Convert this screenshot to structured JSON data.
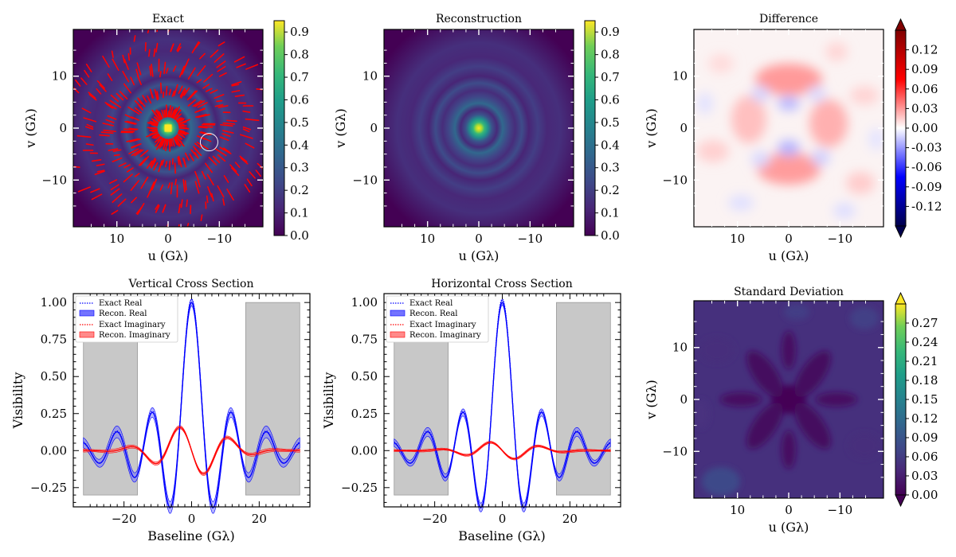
{
  "figure_title": "",
  "chart_data": [
    {
      "type": "heatmap",
      "id": "exact",
      "title": "Exact",
      "xlabel": "u (Gλ)",
      "ylabel": "v (Gλ)",
      "xlim": [
        18.5,
        -18.5
      ],
      "ylim": [
        -19,
        19
      ],
      "xticks": [
        10,
        0,
        -10
      ],
      "yticks": [
        10,
        0,
        -10
      ],
      "xtick_labels": [
        "10",
        "0",
        "−10"
      ],
      "ytick_labels": [
        "10",
        "0",
        "−10"
      ],
      "colormap": "viridis",
      "colorbar": {
        "range": [
          0.0,
          0.95
        ],
        "ticks": [
          0.0,
          0.1,
          0.2,
          0.3,
          0.4,
          0.5,
          0.6,
          0.7,
          0.8,
          0.9
        ],
        "tick_labels": [
          "0.0",
          "0.1",
          "0.2",
          "0.3",
          "0.4",
          "0.5",
          "0.6",
          "0.7",
          "0.8",
          "0.9"
        ]
      },
      "overlay": "red uv-coverage tracks",
      "ring_annotation_center": [
        -8,
        -2.7
      ]
    },
    {
      "type": "heatmap",
      "id": "reconstruction",
      "title": "Reconstruction",
      "xlabel": "u (Gλ)",
      "ylabel": "v (Gλ)",
      "xlim": [
        18.5,
        -18.5
      ],
      "ylim": [
        -19,
        19
      ],
      "xticks": [
        10,
        0,
        -10
      ],
      "yticks": [
        10,
        0,
        -10
      ],
      "xtick_labels": [
        "10",
        "0",
        "−10"
      ],
      "ytick_labels": [
        "10",
        "0",
        "−10"
      ],
      "colormap": "viridis",
      "colorbar": {
        "range": [
          0.0,
          0.95
        ],
        "ticks": [
          0.0,
          0.1,
          0.2,
          0.3,
          0.4,
          0.5,
          0.6,
          0.7,
          0.8,
          0.9
        ],
        "tick_labels": [
          "0.0",
          "0.1",
          "0.2",
          "0.3",
          "0.4",
          "0.5",
          "0.6",
          "0.7",
          "0.8",
          "0.9"
        ]
      }
    },
    {
      "type": "heatmap",
      "id": "difference",
      "title": "Difference",
      "xlabel": "u (Gλ)",
      "ylabel": "v (Gλ)",
      "xlim": [
        18.5,
        -18.5
      ],
      "ylim": [
        -19,
        19
      ],
      "xticks": [
        10,
        0,
        -10
      ],
      "yticks": [
        10,
        0,
        -10
      ],
      "xtick_labels": [
        "10",
        "0",
        "−10"
      ],
      "ytick_labels": [
        "10",
        "0",
        "−10"
      ],
      "colormap": "seismic",
      "colorbar": {
        "range": [
          -0.15,
          0.15
        ],
        "ticks": [
          -0.12,
          -0.09,
          -0.06,
          -0.03,
          0.0,
          0.03,
          0.06,
          0.09,
          0.12
        ],
        "tick_labels": [
          "-0.12",
          "-0.09",
          "-0.06",
          "-0.03",
          "0.00",
          "0.03",
          "0.06",
          "0.09",
          "0.12"
        ],
        "extend": "both"
      }
    },
    {
      "type": "line",
      "id": "vertical-cross-section",
      "title": "Vertical Cross Section",
      "xlabel": "Baseline (Gλ)",
      "ylabel": "Visibility",
      "xlim": [
        -35,
        35
      ],
      "ylim": [
        -0.38,
        1.06
      ],
      "xticks": [
        -20,
        0,
        20
      ],
      "xtick_labels": [
        "−20",
        "0",
        "20"
      ],
      "yticks": [
        -0.25,
        0.0,
        0.25,
        0.5,
        0.75,
        1.0
      ],
      "ytick_labels": [
        "−0.25",
        "0.00",
        "0.25",
        "0.50",
        "0.75",
        "1.00"
      ],
      "legend": [
        "Exact Real",
        "Recon.  Real",
        "Exact Imaginary",
        "Recon.  Imaginary"
      ],
      "shaded_regions": [
        [
          -32,
          -16
        ],
        [
          16,
          32
        ]
      ],
      "shaded_yrange": [
        -0.3,
        1.0
      ],
      "imag_amplitude": 0.17,
      "real_band": 0.04,
      "imag_band": 0.012
    },
    {
      "type": "line",
      "id": "horizontal-cross-section",
      "title": "Horizontal Cross Section",
      "xlabel": "Baseline (Gλ)",
      "ylabel": "Visibility",
      "xlim": [
        -35,
        35
      ],
      "ylim": [
        -0.38,
        1.06
      ],
      "xticks": [
        -20,
        0,
        20
      ],
      "xtick_labels": [
        "−20",
        "0",
        "20"
      ],
      "yticks": [
        -0.25,
        0.0,
        0.25,
        0.5,
        0.75,
        1.0
      ],
      "ytick_labels": [
        "−0.25",
        "0.00",
        "0.25",
        "0.50",
        "0.75",
        "1.00"
      ],
      "legend": [
        "Exact Real",
        "Recon.  Real",
        "Exact Imaginary",
        "Recon.  Imaginary"
      ],
      "shaded_regions": [
        [
          -32,
          -16
        ],
        [
          16,
          32
        ]
      ],
      "shaded_yrange": [
        -0.3,
        1.0
      ],
      "imag_amplitude": 0.06,
      "real_band": 0.03,
      "imag_band": 0.008
    },
    {
      "type": "heatmap",
      "id": "standard-deviation",
      "title": "Standard Deviation",
      "xlabel": "u (Gλ)",
      "ylabel": "v (Gλ)",
      "xlim": [
        18.5,
        -18.5
      ],
      "ylim": [
        -19,
        19
      ],
      "xticks": [
        10,
        0,
        -10
      ],
      "yticks": [
        10,
        0,
        -10
      ],
      "xtick_labels": [
        "10",
        "0",
        "−10"
      ],
      "ytick_labels": [
        "10",
        "0",
        "−10"
      ],
      "colormap": "viridis",
      "colorbar": {
        "range": [
          0.0,
          0.3
        ],
        "ticks": [
          0.0,
          0.03,
          0.06,
          0.09,
          0.12,
          0.15,
          0.18,
          0.21,
          0.24,
          0.27
        ],
        "tick_labels": [
          "0.00",
          "0.03",
          "0.06",
          "0.09",
          "0.12",
          "0.15",
          "0.18",
          "0.21",
          "0.24",
          "0.27"
        ],
        "extend": "both"
      }
    }
  ]
}
